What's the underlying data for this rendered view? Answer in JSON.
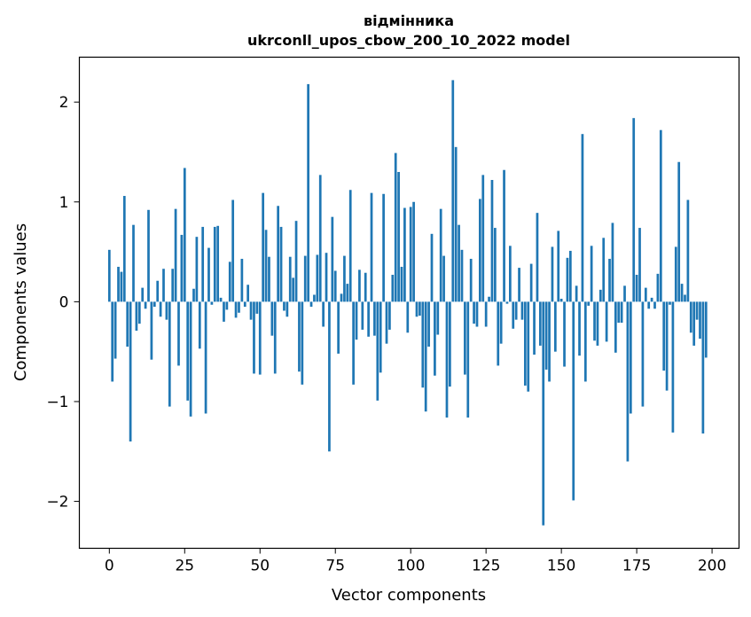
{
  "chart_data": {
    "type": "bar",
    "title_lines": [
      "відмінника",
      "ukrconll_upos_cbow_200_10_2022 model"
    ],
    "xlabel": "Vector components",
    "ylabel": "Components values",
    "xlim": [
      -9.95,
      208.95
    ],
    "ylim": [
      -2.47,
      2.45
    ],
    "xticks": [
      0,
      25,
      50,
      75,
      100,
      125,
      150,
      175,
      200
    ],
    "yticks": [
      -2,
      -1,
      0,
      1,
      2
    ],
    "ytick_labels": [
      "−2",
      "−1",
      "0",
      "1",
      "2"
    ],
    "bar_color": "#1f77b4",
    "grid": false,
    "values": [
      0.52,
      -0.8,
      -0.57,
      0.35,
      0.3,
      1.06,
      -0.45,
      -1.4,
      0.77,
      -0.29,
      -0.22,
      0.14,
      -0.07,
      0.92,
      -0.58,
      -0.05,
      0.21,
      -0.15,
      0.33,
      -0.18,
      -1.05,
      0.33,
      0.93,
      -0.64,
      0.67,
      1.34,
      -0.99,
      -1.15,
      0.13,
      0.65,
      -0.47,
      0.75,
      -1.12,
      0.54,
      -0.03,
      0.75,
      0.76,
      0.04,
      -0.2,
      -0.08,
      0.4,
      1.02,
      -0.16,
      -0.11,
      0.43,
      -0.05,
      0.17,
      -0.18,
      -0.72,
      -0.12,
      -0.73,
      1.09,
      0.72,
      0.45,
      -0.34,
      -0.72,
      0.96,
      0.75,
      -0.09,
      -0.15,
      0.45,
      0.24,
      0.81,
      -0.7,
      -0.83,
      0.46,
      2.18,
      -0.05,
      0.07,
      0.47,
      1.27,
      -0.25,
      0.49,
      -1.5,
      0.85,
      0.31,
      -0.52,
      0.08,
      0.46,
      0.18,
      1.12,
      -0.83,
      -0.38,
      0.32,
      -0.28,
      0.29,
      -0.35,
      1.09,
      -0.34,
      -0.99,
      -0.71,
      1.08,
      -0.42,
      -0.28,
      0.27,
      1.49,
      1.3,
      0.35,
      0.94,
      -0.31,
      0.95,
      1.0,
      -0.15,
      -0.14,
      -0.86,
      -1.1,
      -0.45,
      0.68,
      -0.74,
      -0.33,
      0.93,
      0.46,
      -1.16,
      -0.85,
      2.22,
      1.55,
      0.77,
      0.52,
      -0.73,
      -1.16,
      0.43,
      -0.22,
      -0.25,
      1.03,
      1.27,
      -0.25,
      0.05,
      1.22,
      0.74,
      -0.64,
      -0.42,
      1.32,
      -0.02,
      0.56,
      -0.27,
      -0.18,
      0.34,
      -0.18,
      -0.84,
      -0.9,
      0.38,
      -0.53,
      0.89,
      -0.44,
      -2.24,
      -0.68,
      -0.8,
      0.55,
      -0.5,
      0.71,
      0.03,
      -0.65,
      0.44,
      0.51,
      -1.99,
      0.16,
      -0.54,
      1.68,
      -0.8,
      -0.04,
      0.56,
      -0.39,
      -0.44,
      0.12,
      0.64,
      -0.4,
      0.43,
      0.79,
      -0.51,
      -0.21,
      -0.21,
      0.16,
      -1.6,
      -1.12,
      1.84,
      0.27,
      0.74,
      -1.05,
      0.14,
      -0.07,
      0.04,
      -0.07,
      0.28,
      1.72,
      -0.69,
      -0.89,
      -0.03,
      -1.31,
      0.55,
      1.4,
      0.18,
      0.07,
      1.02,
      -0.31,
      -0.44,
      -0.18,
      -0.37,
      -1.32,
      -0.56
    ]
  }
}
